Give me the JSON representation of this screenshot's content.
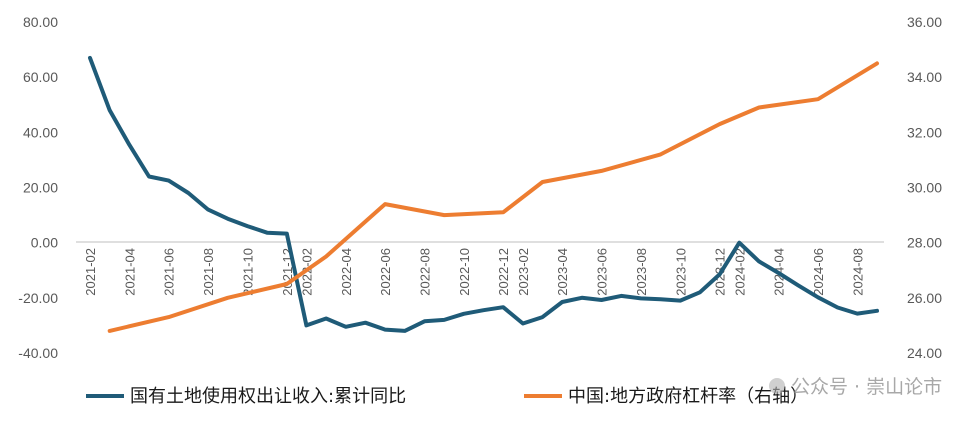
{
  "chart_data": {
    "type": "line",
    "x": [
      "2021-02",
      "2021-03",
      "2021-04",
      "2021-05",
      "2021-06",
      "2021-07",
      "2021-08",
      "2021-09",
      "2021-10",
      "2021-11",
      "2021-12",
      "2022-02",
      "2022-03",
      "2022-04",
      "2022-05",
      "2022-06",
      "2022-07",
      "2022-08",
      "2022-09",
      "2022-10",
      "2022-11",
      "2022-12",
      "2023-02",
      "2023-03",
      "2023-04",
      "2023-05",
      "2023-06",
      "2023-07",
      "2023-08",
      "2023-09",
      "2023-10",
      "2023-11",
      "2023-12",
      "2024-02",
      "2024-03",
      "2024-04",
      "2024-05",
      "2024-06",
      "2024-07",
      "2024-08",
      "2024-09"
    ],
    "xtick_labels": [
      "2021-02",
      "2021-04",
      "2021-06",
      "2021-08",
      "2021-10",
      "2021-12",
      "2022-02",
      "2022-04",
      "2022-06",
      "2022-08",
      "2022-10",
      "2022-12",
      "2023-02",
      "2023-04",
      "2023-06",
      "2023-08",
      "2023-10",
      "2023-12",
      "2024-02",
      "2024-04",
      "2024-06",
      "2024-08"
    ],
    "y_left": {
      "range": [
        -40,
        80
      ],
      "ticks": [
        "80.00",
        "60.00",
        "40.00",
        "20.00",
        "0.00",
        "-20.00",
        "-40.00"
      ]
    },
    "y_right": {
      "range": [
        24,
        36
      ],
      "ticks": [
        "36.00",
        "34.00",
        "32.00",
        "30.00",
        "28.00",
        "26.00",
        "24.00"
      ]
    },
    "series": [
      {
        "name": "国有土地使用权出让收入:累计同比",
        "axis": "left",
        "color": "#1f5b78",
        "x": [
          "2021-02",
          "2021-03",
          "2021-04",
          "2021-05",
          "2021-06",
          "2021-07",
          "2021-08",
          "2021-09",
          "2021-10",
          "2021-11",
          "2021-12",
          "2022-02",
          "2022-03",
          "2022-04",
          "2022-05",
          "2022-06",
          "2022-07",
          "2022-08",
          "2022-09",
          "2022-10",
          "2022-11",
          "2022-12",
          "2023-02",
          "2023-03",
          "2023-04",
          "2023-05",
          "2023-06",
          "2023-07",
          "2023-08",
          "2023-09",
          "2023-10",
          "2023-11",
          "2023-12",
          "2024-02",
          "2024-03",
          "2024-04",
          "2024-05",
          "2024-06",
          "2024-07",
          "2024-08",
          "2024-09"
        ],
        "values": [
          67.0,
          48.0,
          35.5,
          24.0,
          22.5,
          18.0,
          12.0,
          8.7,
          6.0,
          3.6,
          3.3,
          -30.0,
          -27.5,
          -30.5,
          -29.0,
          -31.5,
          -32.0,
          -28.5,
          -28.0,
          -25.8,
          -24.5,
          -23.4,
          -29.3,
          -27.0,
          -21.5,
          -20.0,
          -20.8,
          -19.3,
          -20.2,
          -20.5,
          -21.0,
          -18.0,
          -11.5,
          0.0,
          -6.8,
          -11.0,
          -15.5,
          -19.8,
          -23.5,
          -25.7,
          -24.7
        ]
      },
      {
        "name": "中国:地方政府杠杆率（右轴）",
        "axis": "right",
        "color": "#ed7d31",
        "x": [
          "2021-03",
          "2021-06",
          "2021-09",
          "2021-12",
          "2022-03",
          "2022-06",
          "2022-09",
          "2022-12",
          "2023-03",
          "2023-06",
          "2023-09",
          "2023-12",
          "2024-03",
          "2024-06",
          "2024-09"
        ],
        "values": [
          24.8,
          25.3,
          26.0,
          26.5,
          27.5,
          29.4,
          29.0,
          29.1,
          30.2,
          30.6,
          31.2,
          32.3,
          32.9,
          33.2,
          34.5
        ]
      }
    ],
    "grid": false,
    "legend_position": "bottom"
  },
  "watermark": "公众号 · 崇山论市"
}
